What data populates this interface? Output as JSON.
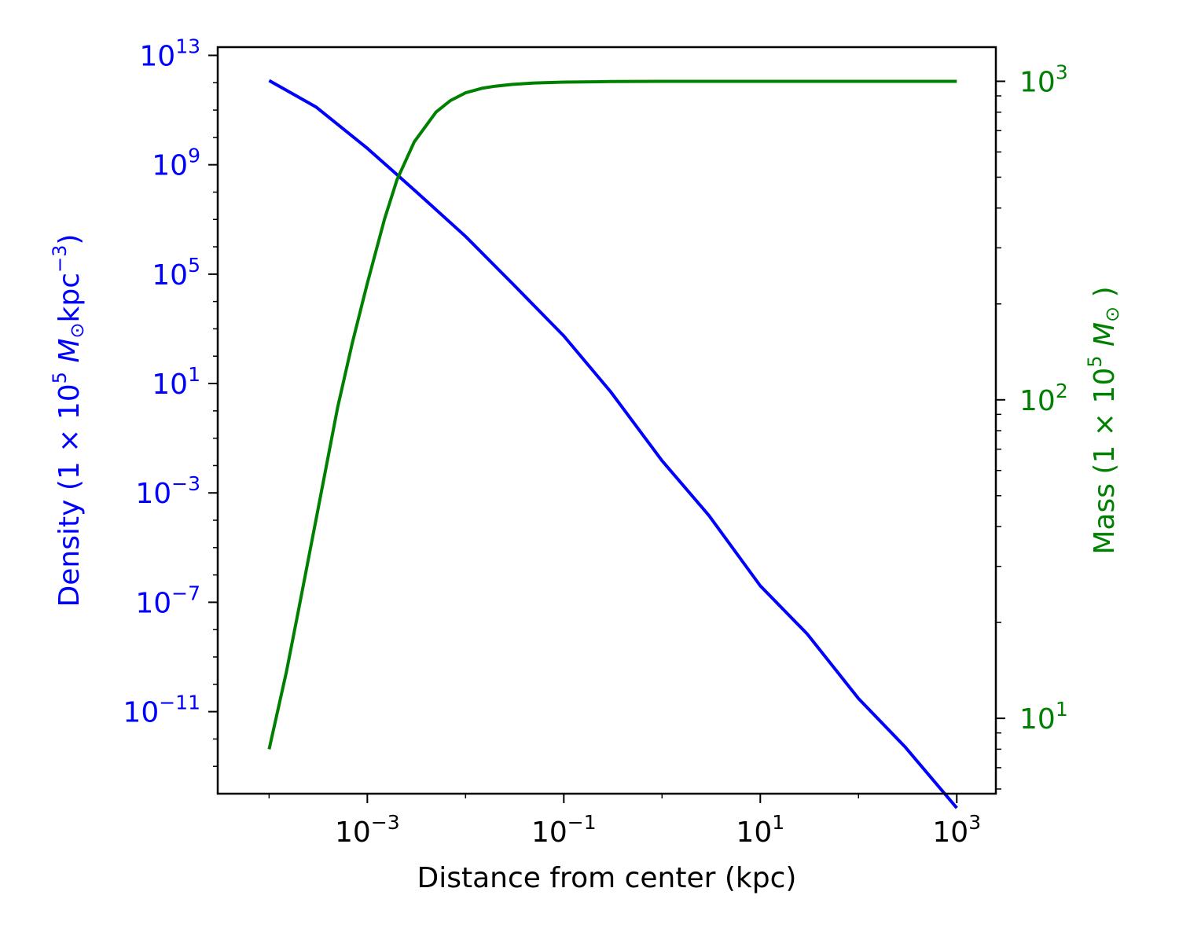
{
  "chart_data": {
    "type": "line",
    "xlabel": "Distance from center (kpc)",
    "ylabel_left": "Density (1 × 10⁵ M⊙ kpc⁻³)",
    "ylabel_right": "Mass (1 × 10⁵ M⊙ )",
    "x_scale": "log",
    "y_left_scale": "log",
    "y_right_scale": "log",
    "xlim": [
      3e-05,
      2500
    ],
    "ylim_left": [
      1e-14,
      20000000000000.0
    ],
    "ylim_right": [
      5.8,
      1280
    ],
    "x_ticks": [
      {
        "value": 0.001,
        "base": "10",
        "exp": "−3"
      },
      {
        "value": 0.1,
        "base": "10",
        "exp": "−1"
      },
      {
        "value": 10,
        "base": "10",
        "exp": "1"
      },
      {
        "value": 1000,
        "base": "10",
        "exp": "3"
      }
    ],
    "y_left_ticks": [
      {
        "value": 10000000000000.0,
        "base": "10",
        "exp": "13"
      },
      {
        "value": 1000000000.0,
        "base": "10",
        "exp": "9"
      },
      {
        "value": 100000.0,
        "base": "10",
        "exp": "5"
      },
      {
        "value": 10,
        "base": "10",
        "exp": "1"
      },
      {
        "value": 0.001,
        "base": "10",
        "exp": "−3"
      },
      {
        "value": 1e-07,
        "base": "10",
        "exp": "−7"
      },
      {
        "value": 1e-11,
        "base": "10",
        "exp": "−11"
      }
    ],
    "y_right_ticks": [
      {
        "value": 1000,
        "base": "10",
        "exp": "3"
      },
      {
        "value": 100,
        "base": "10",
        "exp": "2"
      },
      {
        "value": 10,
        "base": "10",
        "exp": "1"
      }
    ],
    "grid": false,
    "series": [
      {
        "axis": "left",
        "color": "#0000ff",
        "x": [
          0.0001,
          0.0003,
          0.001,
          0.003,
          0.01,
          0.03,
          0.1,
          0.3,
          1,
          3,
          10,
          30,
          100,
          300,
          1000
        ],
        "y": [
          1200000000000.0,
          130000000000.0,
          4000000000.0,
          120000000.0,
          2400000.0,
          45000.0,
          550.0,
          5.0,
          0.015,
          0.00015,
          4e-07,
          7e-09,
          3e-11,
          5e-13,
          3e-15
        ]
      },
      {
        "axis": "right",
        "color": "#008000",
        "x": [
          0.0001,
          0.00015,
          0.0002,
          0.0003,
          0.0005,
          0.0007,
          0.001,
          0.0015,
          0.002,
          0.003,
          0.005,
          0.007,
          0.01,
          0.015,
          0.02,
          0.03,
          0.05,
          0.1,
          0.3,
          1,
          10,
          1000
        ],
        "y": [
          8,
          14,
          22,
          42,
          95,
          150,
          232,
          370,
          490,
          645,
          800,
          870,
          920,
          952,
          965,
          978,
          988,
          994,
          998,
          1000,
          1000,
          1000
        ]
      }
    ]
  }
}
